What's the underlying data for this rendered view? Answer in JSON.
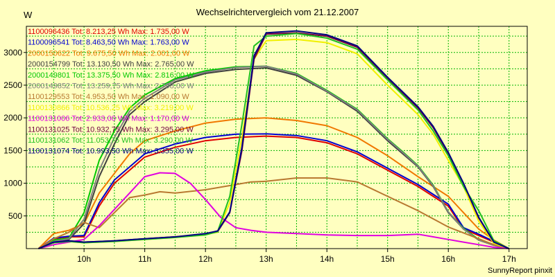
{
  "chart_data": {
    "type": "line",
    "title": "Wechselrichtervergleich vom 21.12.2007",
    "ylabel": "W",
    "credit": "SunnyReport pinxit",
    "xlim": [
      9.05,
      17.3
    ],
    "ylim": [
      0,
      3400
    ],
    "x_ticks": [
      {
        "value": 10,
        "label": "10h"
      },
      {
        "value": 11,
        "label": "11h"
      },
      {
        "value": 12,
        "label": "12h"
      },
      {
        "value": 13,
        "label": "13h"
      },
      {
        "value": 14,
        "label": "14h"
      },
      {
        "value": 15,
        "label": "15h"
      },
      {
        "value": 16,
        "label": "16h"
      },
      {
        "value": 17,
        "label": "17h"
      }
    ],
    "y_ticks": [
      {
        "value": 500,
        "label": "500"
      },
      {
        "value": 1000,
        "label": "1000"
      },
      {
        "value": 1500,
        "label": "1500"
      },
      {
        "value": 2000,
        "label": "2000"
      },
      {
        "value": 2500,
        "label": "2500"
      },
      {
        "value": 3000,
        "label": "3000"
      }
    ],
    "grid": true,
    "legend_position": "top-left",
    "series": [
      {
        "name": "1100096436 Tot: 8.213,25 Wh Max: 1.735,00 W",
        "color": "#e00000",
        "points": [
          [
            9.25,
            0
          ],
          [
            9.5,
            150
          ],
          [
            9.75,
            180
          ],
          [
            10,
            180
          ],
          [
            10.25,
            650
          ],
          [
            10.5,
            1000
          ],
          [
            10.75,
            1200
          ],
          [
            11,
            1400
          ],
          [
            11.5,
            1550
          ],
          [
            12,
            1650
          ],
          [
            12.5,
            1700
          ],
          [
            13,
            1720
          ],
          [
            13.5,
            1700
          ],
          [
            14,
            1620
          ],
          [
            14.5,
            1450
          ],
          [
            15,
            1200
          ],
          [
            15.5,
            950
          ],
          [
            15.75,
            800
          ],
          [
            16,
            650
          ],
          [
            16.25,
            300
          ],
          [
            16.5,
            200
          ],
          [
            16.75,
            100
          ],
          [
            17,
            0
          ]
        ]
      },
      {
        "name": "1100096541 Tot: 8.463,50 Wh Max: 1.763,00 W",
        "color": "#0000d0",
        "points": [
          [
            9.25,
            0
          ],
          [
            9.5,
            160
          ],
          [
            9.75,
            190
          ],
          [
            10,
            200
          ],
          [
            10.25,
            700
          ],
          [
            10.5,
            1050
          ],
          [
            10.75,
            1250
          ],
          [
            11,
            1450
          ],
          [
            11.5,
            1600
          ],
          [
            12,
            1700
          ],
          [
            12.5,
            1750
          ],
          [
            13,
            1755
          ],
          [
            13.5,
            1730
          ],
          [
            14,
            1650
          ],
          [
            14.5,
            1480
          ],
          [
            15,
            1230
          ],
          [
            15.5,
            980
          ],
          [
            15.75,
            830
          ],
          [
            16,
            680
          ],
          [
            16.25,
            320
          ],
          [
            16.5,
            220
          ],
          [
            16.75,
            110
          ],
          [
            17,
            0
          ]
        ]
      },
      {
        "name": "2000150622 Tot: 9.675,50 Wh Max: 2.001,00 W",
        "color": "#f07800",
        "points": [
          [
            9.25,
            0
          ],
          [
            9.5,
            230
          ],
          [
            9.75,
            280
          ],
          [
            10,
            380
          ],
          [
            10.25,
            850
          ],
          [
            10.5,
            1150
          ],
          [
            10.75,
            1450
          ],
          [
            11,
            1650
          ],
          [
            11.5,
            1800
          ],
          [
            12,
            1920
          ],
          [
            12.5,
            1980
          ],
          [
            13,
            2000
          ],
          [
            13.5,
            1960
          ],
          [
            14,
            1880
          ],
          [
            14.5,
            1700
          ],
          [
            15,
            1420
          ],
          [
            15.5,
            1100
          ],
          [
            15.75,
            950
          ],
          [
            16,
            800
          ],
          [
            16.25,
            550
          ],
          [
            16.5,
            300
          ],
          [
            16.75,
            130
          ],
          [
            17,
            0
          ]
        ]
      },
      {
        "name": "2000154799 Tot: 13.130,50 Wh Max: 2.765,00 W",
        "color": "#404040",
        "points": [
          [
            9.25,
            0
          ],
          [
            9.5,
            100
          ],
          [
            9.75,
            140
          ],
          [
            10,
            380
          ],
          [
            10.25,
            1100
          ],
          [
            10.5,
            1600
          ],
          [
            10.75,
            2050
          ],
          [
            11,
            2250
          ],
          [
            11.5,
            2550
          ],
          [
            12,
            2680
          ],
          [
            12.5,
            2740
          ],
          [
            13,
            2765
          ],
          [
            13.5,
            2650
          ],
          [
            14,
            2400
          ],
          [
            14.5,
            2100
          ],
          [
            15,
            1650
          ],
          [
            15.25,
            1450
          ],
          [
            15.5,
            1250
          ],
          [
            15.75,
            950
          ],
          [
            16,
            550
          ],
          [
            16.25,
            300
          ],
          [
            16.5,
            130
          ],
          [
            16.75,
            50
          ],
          [
            17,
            0
          ]
        ]
      },
      {
        "name": "2000149801 Tot: 13.375,50 Wh Max: 2.816,00 W",
        "color": "#00c800",
        "points": [
          [
            9.25,
            0
          ],
          [
            9.5,
            130
          ],
          [
            9.75,
            160
          ],
          [
            10,
            550
          ],
          [
            10.25,
            1350
          ],
          [
            10.5,
            1800
          ],
          [
            10.75,
            2150
          ],
          [
            11,
            2350
          ],
          [
            11.5,
            2600
          ],
          [
            12,
            2720
          ],
          [
            12.5,
            2780
          ],
          [
            13,
            2790
          ],
          [
            13.5,
            2680
          ],
          [
            14,
            2420
          ],
          [
            14.5,
            2130
          ],
          [
            15,
            1680
          ],
          [
            15.25,
            1480
          ],
          [
            15.5,
            1270
          ],
          [
            15.75,
            970
          ],
          [
            16,
            560
          ],
          [
            16.25,
            310
          ],
          [
            16.5,
            140
          ],
          [
            16.75,
            60
          ],
          [
            17,
            0
          ]
        ]
      },
      {
        "name": "2000149852 Tot: 13.259,75 Wh Max: 2.798,00 W",
        "color": "#808080",
        "points": [
          [
            9.25,
            0
          ],
          [
            9.5,
            110
          ],
          [
            9.75,
            150
          ],
          [
            10,
            450
          ],
          [
            10.25,
            1200
          ],
          [
            10.5,
            1700
          ],
          [
            10.75,
            2100
          ],
          [
            11,
            2300
          ],
          [
            11.5,
            2580
          ],
          [
            12,
            2700
          ],
          [
            12.5,
            2770
          ],
          [
            13,
            2790
          ],
          [
            13.5,
            2670
          ],
          [
            14,
            2410
          ],
          [
            14.5,
            2120
          ],
          [
            15,
            1670
          ],
          [
            15.25,
            1470
          ],
          [
            15.5,
            1260
          ],
          [
            15.75,
            960
          ],
          [
            16,
            560
          ],
          [
            16.25,
            300
          ],
          [
            16.5,
            130
          ],
          [
            16.75,
            50
          ],
          [
            17,
            0
          ]
        ]
      },
      {
        "name": "1100129553 Tot: 4.953,50 Wh Max: 1.090,00 W",
        "color": "#b87830",
        "points": [
          [
            9.25,
            0
          ],
          [
            9.5,
            150
          ],
          [
            9.75,
            250
          ],
          [
            10,
            400
          ],
          [
            10.25,
            320
          ],
          [
            10.5,
            550
          ],
          [
            10.75,
            780
          ],
          [
            11,
            820
          ],
          [
            11.25,
            870
          ],
          [
            11.5,
            850
          ],
          [
            12,
            900
          ],
          [
            12.5,
            980
          ],
          [
            12.75,
            1020
          ],
          [
            13,
            1030
          ],
          [
            13.5,
            1080
          ],
          [
            14,
            1080
          ],
          [
            14.5,
            1020
          ],
          [
            15,
            800
          ],
          [
            15.5,
            580
          ],
          [
            16,
            330
          ],
          [
            16.5,
            150
          ],
          [
            16.75,
            60
          ],
          [
            17,
            0
          ]
        ]
      },
      {
        "name": "1100130866 Tot: 10.536,25 Wh Max: 3.219,00 W",
        "color": "#f0f000",
        "points": [
          [
            9.25,
            0
          ],
          [
            9.5,
            90
          ],
          [
            9.75,
            110
          ],
          [
            10,
            90
          ],
          [
            10.5,
            110
          ],
          [
            11,
            140
          ],
          [
            11.5,
            170
          ],
          [
            12,
            220
          ],
          [
            12.2,
            250
          ],
          [
            12.4,
            700
          ],
          [
            12.6,
            1700
          ],
          [
            12.8,
            2900
          ],
          [
            13,
            3180
          ],
          [
            13.5,
            3200
          ],
          [
            14,
            3150
          ],
          [
            14.5,
            2980
          ],
          [
            15,
            2500
          ],
          [
            15.5,
            2050
          ],
          [
            15.75,
            1750
          ],
          [
            16,
            1350
          ],
          [
            16.25,
            950
          ],
          [
            16.5,
            420
          ],
          [
            16.75,
            80
          ],
          [
            17,
            0
          ]
        ]
      },
      {
        "name": "1100131006 Tot: 2.933,00 Wh Max: 1.170,00 W",
        "color": "#e000e0",
        "points": [
          [
            9.25,
            0
          ],
          [
            9.5,
            60
          ],
          [
            9.75,
            100
          ],
          [
            10,
            140
          ],
          [
            10.25,
            350
          ],
          [
            10.5,
            600
          ],
          [
            10.75,
            850
          ],
          [
            11,
            1100
          ],
          [
            11.25,
            1160
          ],
          [
            11.5,
            1150
          ],
          [
            11.75,
            1000
          ],
          [
            12,
            750
          ],
          [
            12.25,
            480
          ],
          [
            12.5,
            320
          ],
          [
            12.75,
            280
          ],
          [
            13,
            250
          ],
          [
            13.5,
            230
          ],
          [
            14,
            210
          ],
          [
            14.5,
            200
          ],
          [
            15,
            200
          ],
          [
            15.25,
            210
          ],
          [
            15.5,
            220
          ],
          [
            15.75,
            180
          ],
          [
            16,
            140
          ],
          [
            16.25,
            100
          ],
          [
            16.5,
            60
          ],
          [
            16.75,
            20
          ],
          [
            17,
            0
          ]
        ]
      },
      {
        "name": "1100131025 Tot: 10.932,75 Wh Max: 3.295,00 W",
        "color": "#700040",
        "points": [
          [
            9.25,
            0
          ],
          [
            9.5,
            100
          ],
          [
            9.75,
            120
          ],
          [
            10,
            100
          ],
          [
            10.5,
            120
          ],
          [
            11,
            150
          ],
          [
            11.5,
            180
          ],
          [
            12,
            220
          ],
          [
            12.2,
            260
          ],
          [
            12.4,
            550
          ],
          [
            12.6,
            1500
          ],
          [
            12.8,
            2900
          ],
          [
            13,
            3280
          ],
          [
            13.5,
            3300
          ],
          [
            14,
            3250
          ],
          [
            14.5,
            3080
          ],
          [
            15,
            2600
          ],
          [
            15.5,
            2150
          ],
          [
            15.75,
            1850
          ],
          [
            16,
            1450
          ],
          [
            16.25,
            1000
          ],
          [
            16.5,
            470
          ],
          [
            16.75,
            100
          ],
          [
            17,
            0
          ]
        ]
      },
      {
        "name": "1100131062 Tot: 11.053,75 Wh Max: 3.290,00 W",
        "color": "#20c020",
        "points": [
          [
            9.25,
            0
          ],
          [
            9.5,
            90
          ],
          [
            9.75,
            110
          ],
          [
            10,
            90
          ],
          [
            10.5,
            110
          ],
          [
            11,
            140
          ],
          [
            11.5,
            170
          ],
          [
            12,
            210
          ],
          [
            12.2,
            260
          ],
          [
            12.4,
            800
          ],
          [
            12.6,
            1900
          ],
          [
            12.8,
            3100
          ],
          [
            13,
            3250
          ],
          [
            13.5,
            3290
          ],
          [
            14,
            3220
          ],
          [
            14.5,
            3050
          ],
          [
            15,
            2580
          ],
          [
            15.5,
            2120
          ],
          [
            15.75,
            1800
          ],
          [
            16,
            1420
          ],
          [
            16.25,
            950
          ],
          [
            16.5,
            580
          ],
          [
            16.75,
            120
          ],
          [
            17,
            0
          ]
        ]
      },
      {
        "name": "1100131074 Tot: 10.993,50 Wh Max: 3.355,00 W",
        "color": "#000080",
        "points": [
          [
            9.25,
            0
          ],
          [
            9.5,
            100
          ],
          [
            9.75,
            120
          ],
          [
            10,
            100
          ],
          [
            10.5,
            120
          ],
          [
            11,
            150
          ],
          [
            11.5,
            180
          ],
          [
            12,
            230
          ],
          [
            12.2,
            270
          ],
          [
            12.4,
            560
          ],
          [
            12.6,
            1550
          ],
          [
            12.8,
            2950
          ],
          [
            13,
            3300
          ],
          [
            13.5,
            3330
          ],
          [
            14,
            3270
          ],
          [
            14.5,
            3100
          ],
          [
            15,
            2620
          ],
          [
            15.5,
            2170
          ],
          [
            15.75,
            1870
          ],
          [
            16,
            1470
          ],
          [
            16.25,
            1000
          ],
          [
            16.5,
            480
          ],
          [
            16.75,
            100
          ],
          [
            17,
            0
          ]
        ]
      }
    ]
  }
}
